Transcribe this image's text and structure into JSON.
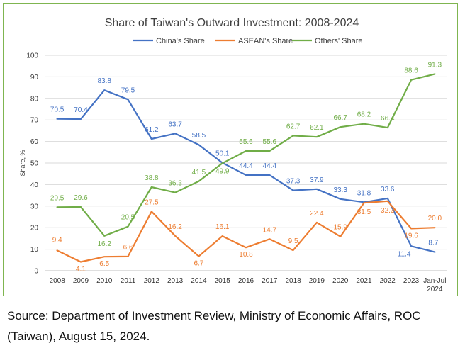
{
  "chart_data": {
    "type": "line",
    "title": "Share of Taiwan's Outward Investment: 2008-2024",
    "xlabel": "",
    "ylabel": "Share, %",
    "ylim": [
      0,
      100
    ],
    "yticks": [
      0,
      10,
      20,
      30,
      40,
      50,
      60,
      70,
      80,
      90,
      100
    ],
    "grid": true,
    "legend_position": "top",
    "categories": [
      "2008",
      "2009",
      "2010",
      "2011",
      "2012",
      "2013",
      "2014",
      "2015",
      "2016",
      "2017",
      "2018",
      "2019",
      "2020",
      "2021",
      "2022",
      "2023",
      "Jan-Jul 2024"
    ],
    "category_lines": [
      [
        "2008"
      ],
      [
        "2009"
      ],
      [
        "2010"
      ],
      [
        "2011"
      ],
      [
        "2012"
      ],
      [
        "2013"
      ],
      [
        "2014"
      ],
      [
        "2015"
      ],
      [
        "2016"
      ],
      [
        "2017"
      ],
      [
        "2018"
      ],
      [
        "2019"
      ],
      [
        "2020"
      ],
      [
        "2021"
      ],
      [
        "2022"
      ],
      [
        "2023"
      ],
      [
        "Jan-Jul",
        "2024"
      ]
    ],
    "series": [
      {
        "name": "China's Share",
        "color": "#4472c4",
        "values": [
          70.5,
          70.4,
          83.8,
          79.5,
          61.2,
          63.7,
          58.5,
          50.1,
          44.4,
          44.4,
          37.3,
          37.9,
          33.3,
          31.8,
          33.6,
          11.4,
          8.7
        ],
        "labels": [
          "70.5",
          "70.4",
          "83.8",
          "79.5",
          "61.2",
          "63.7",
          "58.5",
          "50.1",
          "44.4",
          "44.4",
          "37.3",
          "37.9",
          "33.3",
          "31.8",
          "33.6",
          "11.4",
          "8.7"
        ]
      },
      {
        "name": "ASEAN's Share",
        "color": "#ed7d31",
        "values": [
          9.4,
          4.1,
          6.5,
          6.6,
          27.5,
          16.2,
          6.7,
          16.1,
          10.8,
          14.7,
          9.5,
          22.4,
          15.9,
          31.5,
          32.3,
          19.6,
          20.0
        ],
        "labels": [
          "9.4",
          "4.1",
          "6.5",
          "6.6",
          "27.5",
          "16.2",
          "6.7",
          "16.1",
          "10.8",
          "14.7",
          "9.5",
          "22.4",
          "15.9",
          "31.5",
          "32.3",
          "19.6",
          "20.0"
        ]
      },
      {
        "name": "Others' Share",
        "color": "#70ad47",
        "values": [
          29.5,
          29.6,
          16.2,
          20.5,
          38.8,
          36.3,
          41.5,
          49.9,
          55.6,
          55.6,
          62.7,
          62.1,
          66.7,
          68.2,
          66.4,
          88.6,
          91.3
        ],
        "labels": [
          "29.5",
          "29.6",
          "16.2",
          "20.5",
          "38.8",
          "36.3",
          "41.5",
          "49.9",
          "55.6",
          "55.6",
          "62.7",
          "62.1",
          "66.7",
          "68.2",
          "66.4",
          "88.6",
          "91.3"
        ]
      }
    ]
  },
  "colors": {
    "frame_border": "#7fb550",
    "gridline": "#d9d9d9"
  },
  "source": {
    "text": "Source: Department of Investment Review, Ministry of Economic Affairs, ROC (Taiwan), August 15, 2024."
  }
}
